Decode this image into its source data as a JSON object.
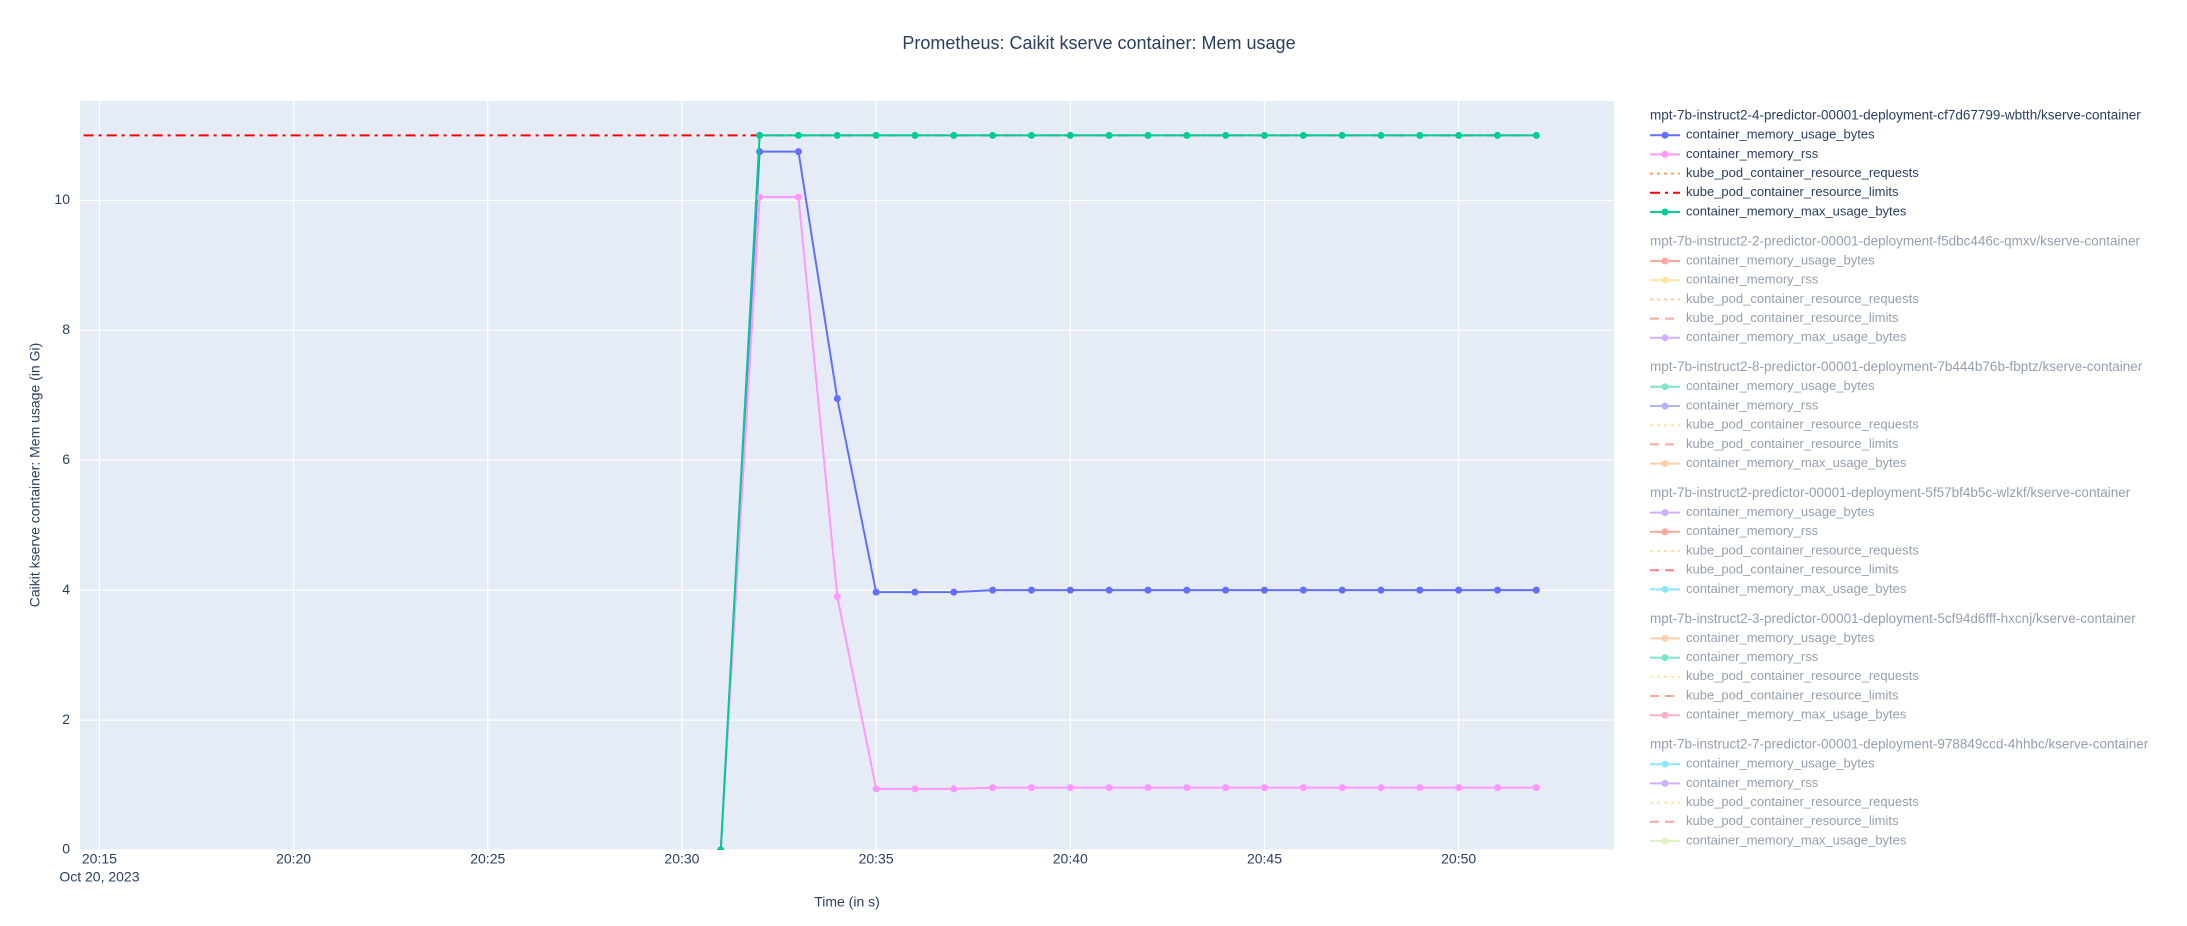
{
  "chart_data": {
    "type": "line",
    "title": "Prometheus: Caikit kserve container: Mem usage",
    "x_label": "Time (in s)",
    "y_label": "Caikit kserve container: Mem usage (in Gi)",
    "x_date_label": "Oct 20, 2023",
    "x": [
      "2023-10-20 20:31",
      "2023-10-20 20:32",
      "2023-10-20 20:33",
      "2023-10-20 20:34",
      "2023-10-20 20:35",
      "2023-10-20 20:36",
      "2023-10-20 20:37",
      "2023-10-20 20:38",
      "2023-10-20 20:39",
      "2023-10-20 20:40",
      "2023-10-20 20:41",
      "2023-10-20 20:42",
      "2023-10-20 20:43",
      "2023-10-20 20:44",
      "2023-10-20 20:45",
      "2023-10-20 20:46",
      "2023-10-20 20:47",
      "2023-10-20 20:48",
      "2023-10-20 20:49",
      "2023-10-20 20:50",
      "2023-10-20 20:51",
      "2023-10-20 20:52"
    ],
    "xlim": [
      "2023-10-20 20:14:30",
      "2023-10-20 20:54"
    ],
    "xticks": [
      {
        "value": "2023-10-20 20:15",
        "label": "20:15"
      },
      {
        "value": "2023-10-20 20:20",
        "label": "20:20"
      },
      {
        "value": "2023-10-20 20:25",
        "label": "20:25"
      },
      {
        "value": "2023-10-20 20:30",
        "label": "20:30"
      },
      {
        "value": "2023-10-20 20:35",
        "label": "20:35"
      },
      {
        "value": "2023-10-20 20:40",
        "label": "20:40"
      },
      {
        "value": "2023-10-20 20:45",
        "label": "20:45"
      },
      {
        "value": "2023-10-20 20:50",
        "label": "20:50"
      }
    ],
    "ylim": [
      0,
      11.53
    ],
    "yticks": [
      0,
      2,
      4,
      6,
      8,
      10
    ],
    "grid": true,
    "legend_position": "right",
    "series_groups": [
      {
        "title": "mpt-7b-instruct2-4-predictor-00001-deployment-cf7d67799-wbtth/kserve-container",
        "visible": true,
        "series": [
          {
            "name": "container_memory_usage_bytes",
            "color": "#636efa",
            "dash": "solid",
            "markers": true,
            "values": [
              0,
              10.75,
              10.75,
              6.95,
              3.97,
              3.97,
              3.97,
              4.0,
              4.0,
              4.0,
              4.0,
              4.0,
              4.0,
              4.0,
              4.0,
              4.0,
              4.0,
              4.0,
              4.0,
              4.0,
              4.0,
              4.0
            ]
          },
          {
            "name": "container_memory_rss",
            "color": "#ff97ff",
            "dash": "solid",
            "markers": true,
            "values": [
              0,
              10.05,
              10.05,
              3.9,
              0.94,
              0.94,
              0.94,
              0.96,
              0.96,
              0.96,
              0.96,
              0.96,
              0.96,
              0.96,
              0.96,
              0.96,
              0.96,
              0.96,
              0.96,
              0.96,
              0.96,
              0.96
            ]
          },
          {
            "name": "kube_pod_container_resource_requests",
            "color": "#ffa15a",
            "dash": "dot",
            "markers": false
          },
          {
            "name": "kube_pod_container_resource_limits",
            "color": "#ff0000",
            "dash": "dashdot",
            "markers": false,
            "x": [
              "2023-10-20 20:14",
              "2023-10-20 20:52"
            ],
            "values": [
              11,
              11
            ]
          },
          {
            "name": "container_memory_max_usage_bytes",
            "color": "#00cc96",
            "dash": "solid",
            "markers": true,
            "values": [
              0,
              11,
              11,
              11,
              11,
              11,
              11,
              11,
              11,
              11,
              11,
              11,
              11,
              11,
              11,
              11,
              11,
              11,
              11,
              11,
              11,
              11
            ]
          }
        ]
      },
      {
        "title": "mpt-7b-instruct2-2-predictor-00001-deployment-f5dbc446c-qmxv/kserve-container",
        "visible": false,
        "series": [
          {
            "name": "container_memory_usage_bytes",
            "color": "#ef553b",
            "dash": "solid",
            "markers": true
          },
          {
            "name": "container_memory_rss",
            "color": "#fecb52",
            "dash": "solid",
            "markers": true
          },
          {
            "name": "kube_pod_container_resource_requests",
            "color": "#ffa15a",
            "dash": "dot",
            "markers": false
          },
          {
            "name": "kube_pod_container_resource_limits",
            "color": "#ef553b",
            "dash": "dash",
            "markers": false
          },
          {
            "name": "container_memory_max_usage_bytes",
            "color": "#ab63fa",
            "dash": "solid",
            "markers": true
          }
        ]
      },
      {
        "title": "mpt-7b-instruct2-8-predictor-00001-deployment-7b444b76b-fbptz/kserve-container",
        "visible": false,
        "series": [
          {
            "name": "container_memory_usage_bytes",
            "color": "#00cc96",
            "dash": "solid",
            "markers": true
          },
          {
            "name": "container_memory_rss",
            "color": "#636efa",
            "dash": "solid",
            "markers": true
          },
          {
            "name": "kube_pod_container_resource_requests",
            "color": "#fecb52",
            "dash": "dot",
            "markers": false
          },
          {
            "name": "kube_pod_container_resource_limits",
            "color": "#ef553b",
            "dash": "dash",
            "markers": false
          },
          {
            "name": "container_memory_max_usage_bytes",
            "color": "#ffa15a",
            "dash": "solid",
            "markers": true
          }
        ]
      },
      {
        "title": "mpt-7b-instruct2-predictor-00001-deployment-5f57bf4b5c-wlzkf/kserve-container",
        "visible": false,
        "series": [
          {
            "name": "container_memory_usage_bytes",
            "color": "#ab63fa",
            "dash": "solid",
            "markers": true
          },
          {
            "name": "container_memory_rss",
            "color": "#ef553b",
            "dash": "solid",
            "markers": true
          },
          {
            "name": "kube_pod_container_resource_requests",
            "color": "#fecb52",
            "dash": "dot",
            "markers": false
          },
          {
            "name": "kube_pod_container_resource_limits",
            "color": "#ff0000",
            "dash": "dash",
            "markers": false
          },
          {
            "name": "container_memory_max_usage_bytes",
            "color": "#19d3f3",
            "dash": "solid",
            "markers": true
          }
        ]
      },
      {
        "title": "mpt-7b-instruct2-3-predictor-00001-deployment-5cf94d6fff-hxcnj/kserve-container",
        "visible": false,
        "series": [
          {
            "name": "container_memory_usage_bytes",
            "color": "#ffa15a",
            "dash": "solid",
            "markers": true
          },
          {
            "name": "container_memory_rss",
            "color": "#00cc96",
            "dash": "solid",
            "markers": true
          },
          {
            "name": "kube_pod_container_resource_requests",
            "color": "#fecb52",
            "dash": "dot",
            "markers": false
          },
          {
            "name": "kube_pod_container_resource_limits",
            "color": "#ef553b",
            "dash": "dash",
            "markers": false
          },
          {
            "name": "container_memory_max_usage_bytes",
            "color": "#ff6692",
            "dash": "solid",
            "markers": true
          }
        ]
      },
      {
        "title": "mpt-7b-instruct2-7-predictor-00001-deployment-978849ccd-4hhbc/kserve-container",
        "visible": false,
        "series": [
          {
            "name": "container_memory_usage_bytes",
            "color": "#19d3f3",
            "dash": "solid",
            "markers": true
          },
          {
            "name": "container_memory_rss",
            "color": "#ab63fa",
            "dash": "solid",
            "markers": true
          },
          {
            "name": "kube_pod_container_resource_requests",
            "color": "#fecb52",
            "dash": "dot",
            "markers": false
          },
          {
            "name": "kube_pod_container_resource_limits",
            "color": "#ef553b",
            "dash": "dash",
            "markers": false
          },
          {
            "name": "container_memory_max_usage_bytes",
            "color": "#b6e880",
            "dash": "solid",
            "markers": true
          }
        ]
      }
    ]
  }
}
